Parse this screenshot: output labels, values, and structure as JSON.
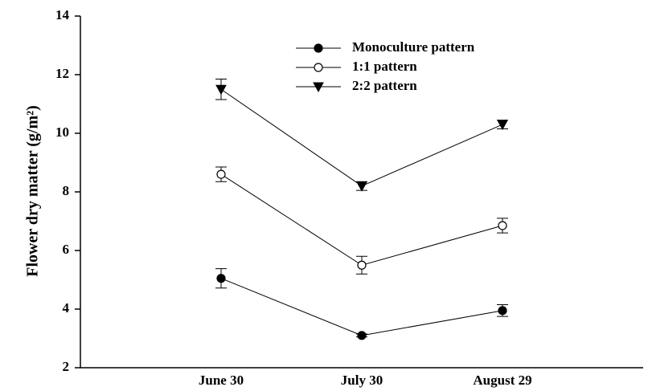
{
  "chart_data": {
    "type": "line",
    "y_label": "Flower dry matter (g/m²)",
    "categories": [
      "June 30",
      "July 30",
      "August 29"
    ],
    "series": [
      {
        "name": "Monoculture pattern",
        "color": "#000000",
        "marker": "filled-circle",
        "values": [
          5.05,
          3.1,
          3.95
        ],
        "errors": [
          0.33,
          0.05,
          0.2
        ]
      },
      {
        "name": "1:1 pattern",
        "color": "#000000",
        "marker": "open-circle",
        "values": [
          8.6,
          5.5,
          6.85
        ],
        "errors": [
          0.25,
          0.3,
          0.25
        ]
      },
      {
        "name": "2:2 pattern",
        "color": "#000000",
        "marker": "filled-triangle-down",
        "values": [
          11.5,
          8.2,
          10.3
        ],
        "errors": [
          0.35,
          0.15,
          0.15
        ]
      }
    ],
    "ylim": [
      2,
      14
    ],
    "yticks": [
      2,
      4,
      6,
      8,
      10,
      12,
      14
    ],
    "legend": "top"
  }
}
